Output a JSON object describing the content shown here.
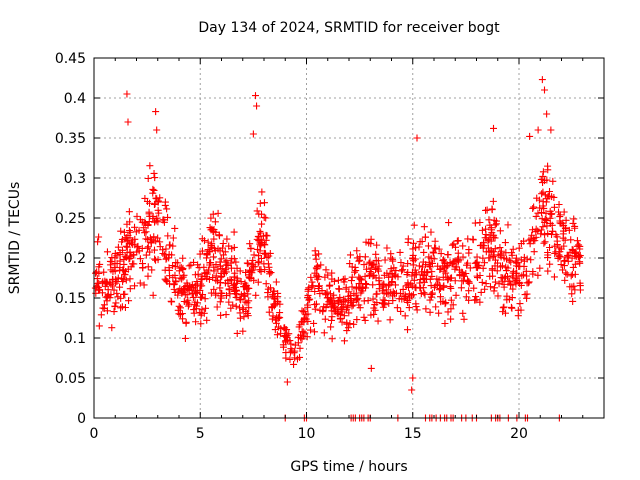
{
  "chart_data": {
    "type": "scatter",
    "title": "Day 134 of 2024, SRMTID for receiver bogt",
    "xlabel": "GPS time / hours",
    "ylabel": "SRMTID / TECUs",
    "xlim": [
      0,
      24
    ],
    "ylim": [
      0,
      0.45
    ],
    "x_ticks": [
      0,
      5,
      10,
      15,
      20
    ],
    "x_tick_labels": [
      "0",
      "5",
      "10",
      "15",
      "20"
    ],
    "y_ticks": [
      0,
      0.05,
      0.1,
      0.15,
      0.2,
      0.25,
      0.3,
      0.35,
      0.4,
      0.45
    ],
    "y_tick_labels": [
      "0",
      "0.05",
      "0.1",
      "0.15",
      "0.2",
      "0.25",
      "0.3",
      "0.35",
      "0.4",
      "0.45"
    ],
    "grid": true,
    "marker": "+",
    "color": "#ff0000",
    "series": [
      {
        "name": "SRMTID",
        "trend": {
          "x": [
            0,
            0.5,
            1,
            1.5,
            2,
            2.5,
            3,
            3.5,
            4,
            4.5,
            5,
            5.5,
            6,
            6.5,
            7,
            7.5,
            8,
            8.5,
            9,
            9.5,
            10,
            10.5,
            11,
            11.5,
            12,
            12.5,
            13,
            13.5,
            14,
            14.5,
            15,
            15.5,
            16,
            16.5,
            17,
            17.5,
            18,
            18.5,
            19,
            19.5,
            20,
            20.5,
            21,
            21.5,
            22,
            22.5,
            22.9
          ],
          "y": [
            0.19,
            0.15,
            0.17,
            0.2,
            0.22,
            0.24,
            0.25,
            0.2,
            0.16,
            0.15,
            0.16,
            0.21,
            0.19,
            0.17,
            0.15,
            0.2,
            0.22,
            0.14,
            0.1,
            0.08,
            0.13,
            0.17,
            0.15,
            0.14,
            0.15,
            0.17,
            0.18,
            0.16,
            0.17,
            0.16,
            0.18,
            0.19,
            0.18,
            0.17,
            0.19,
            0.18,
            0.19,
            0.22,
            0.2,
            0.18,
            0.17,
            0.2,
            0.26,
            0.25,
            0.22,
            0.2,
            0.19
          ]
        },
        "peaks": [
          {
            "x": 1.55,
            "y": 0.405
          },
          {
            "x": 1.6,
            "y": 0.37
          },
          {
            "x": 2.9,
            "y": 0.383
          },
          {
            "x": 2.95,
            "y": 0.36
          },
          {
            "x": 7.6,
            "y": 0.403
          },
          {
            "x": 7.65,
            "y": 0.39
          },
          {
            "x": 7.5,
            "y": 0.355
          },
          {
            "x": 15.2,
            "y": 0.35
          },
          {
            "x": 18.8,
            "y": 0.362
          },
          {
            "x": 20.5,
            "y": 0.352
          },
          {
            "x": 20.9,
            "y": 0.36
          },
          {
            "x": 21.1,
            "y": 0.423
          },
          {
            "x": 21.2,
            "y": 0.41
          },
          {
            "x": 21.3,
            "y": 0.38
          },
          {
            "x": 21.5,
            "y": 0.36
          },
          {
            "x": 14.95,
            "y": 0.035
          },
          {
            "x": 15.0,
            "y": 0.05
          },
          {
            "x": 9.1,
            "y": 0.045
          },
          {
            "x": 13.05,
            "y": 0.062
          }
        ],
        "zero_values_x": [
          9.0,
          9.9,
          10.0,
          12.1,
          12.2,
          12.3,
          12.5,
          12.6,
          12.7,
          12.9,
          13.0,
          14.3,
          15.6,
          15.8,
          15.9,
          16.1,
          16.3,
          16.5,
          16.6,
          16.8,
          16.9,
          17.3,
          17.5,
          17.8,
          18.0,
          18.7,
          18.9,
          19.0,
          19.1,
          19.5,
          19.9,
          20.3,
          20.4,
          21.9
        ]
      }
    ]
  }
}
